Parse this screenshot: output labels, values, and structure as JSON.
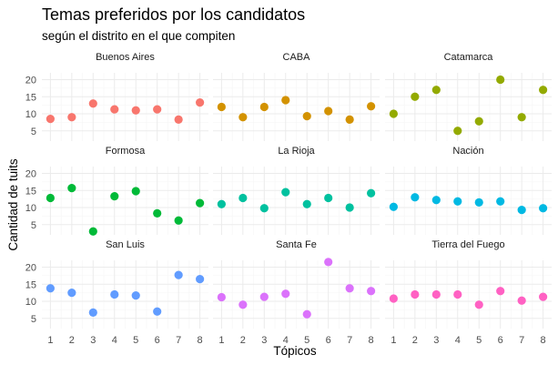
{
  "chart_data": {
    "type": "scatter",
    "title": "Temas preferidos por los candidatos",
    "subtitle": "según el distrito en el que compiten",
    "xlabel": "Tópicos",
    "ylabel": "Cantidad de tuits",
    "x_ticks": [
      1,
      2,
      3,
      4,
      5,
      6,
      7,
      8
    ],
    "y_ticks": [
      5,
      10,
      15,
      20
    ],
    "ylim": [
      2,
      22
    ],
    "xlim": [
      0.6,
      8.4
    ],
    "grid": true,
    "panels": [
      {
        "name": "Buenos Aires",
        "color": "#F8766D",
        "x": [
          1,
          2,
          3,
          4,
          5,
          6,
          7,
          8
        ],
        "y": [
          8.5,
          9,
          13,
          11.3,
          11,
          11.3,
          8.3,
          13.3
        ]
      },
      {
        "name": "CABA",
        "color": "#D39200",
        "x": [
          1,
          2,
          3,
          4,
          5,
          6,
          7,
          8
        ],
        "y": [
          12,
          9,
          12,
          14,
          9.3,
          10.8,
          8.3,
          12.2
        ]
      },
      {
        "name": "Catamarca",
        "color": "#93AA00",
        "x": [
          1,
          2,
          3,
          4,
          5,
          6,
          7,
          8
        ],
        "y": [
          10,
          15,
          17,
          5,
          7.8,
          20,
          9,
          17
        ]
      },
      {
        "name": "Formosa",
        "color": "#00BA38",
        "x": [
          1,
          2,
          3,
          4,
          5,
          6,
          7,
          8
        ],
        "y": [
          12.8,
          15.7,
          3,
          13.3,
          14.8,
          8.3,
          6.2,
          11.3
        ]
      },
      {
        "name": "La Rioja",
        "color": "#00C19F",
        "x": [
          1,
          2,
          3,
          4,
          5,
          6,
          7,
          8
        ],
        "y": [
          11,
          12.8,
          9.8,
          14.5,
          11,
          12.8,
          10,
          14.2
        ]
      },
      {
        "name": "Nación",
        "color": "#00B9E3",
        "x": [
          1,
          2,
          3,
          4,
          5,
          6,
          7,
          8
        ],
        "y": [
          10.2,
          13,
          12.2,
          11.8,
          11.5,
          11.8,
          9.3,
          9.8
        ]
      },
      {
        "name": "San Luis",
        "color": "#619CFF",
        "x": [
          1,
          2,
          3,
          4,
          5,
          6,
          7,
          8
        ],
        "y": [
          13.8,
          12.5,
          6.7,
          12,
          11.7,
          7,
          17.7,
          16.5
        ]
      },
      {
        "name": "Santa Fe",
        "color": "#DB72FB",
        "x": [
          1,
          2,
          3,
          4,
          5,
          6,
          7,
          8
        ],
        "y": [
          11.2,
          9,
          11.3,
          12.2,
          6.2,
          21.5,
          13.8,
          13
        ]
      },
      {
        "name": "Tierra del Fuego",
        "color": "#FF61C3",
        "x": [
          1,
          2,
          3,
          4,
          5,
          6,
          7,
          8
        ],
        "y": [
          10.8,
          12,
          12,
          12,
          9,
          13,
          10.2,
          11.3
        ]
      }
    ]
  },
  "style": {
    "panel_bg": "#ffffff",
    "grid_major": "#ebebeb",
    "grid_minor": "#f5f5f5",
    "text_color": "#4d4d4d",
    "strip_text_color": "#1a1a1a"
  }
}
